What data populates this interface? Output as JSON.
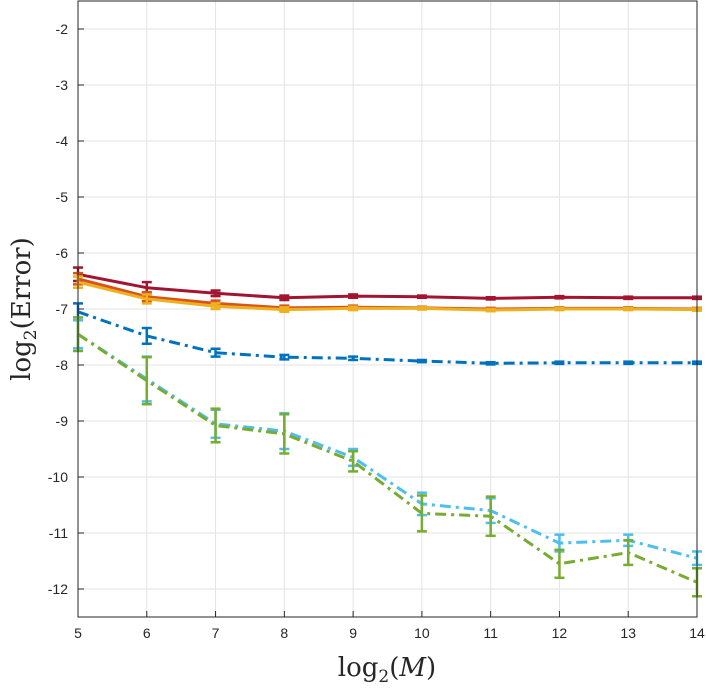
{
  "chart_data": {
    "type": "line",
    "title": "",
    "xlabel": "log2(M)",
    "ylabel": "log2(Error)",
    "xlim": [
      5,
      14
    ],
    "ylim": [
      -12.5,
      -1.5
    ],
    "xticks": [
      5,
      6,
      7,
      8,
      9,
      10,
      11,
      12,
      13,
      14
    ],
    "yticks": [
      -2,
      -3,
      -4,
      -5,
      -6,
      -7,
      -8,
      -9,
      -10,
      -11,
      -12
    ],
    "grid": true,
    "legend": "none",
    "x": [
      5,
      6,
      7,
      8,
      9,
      10,
      11,
      12,
      13,
      14
    ],
    "series": [
      {
        "name": "series-dark-red",
        "color": "#A2142F",
        "style": "solid",
        "values": [
          -6.38,
          -6.62,
          -6.72,
          -6.8,
          -6.77,
          -6.78,
          -6.81,
          -6.79,
          -6.8,
          -6.8
        ],
        "errors": [
          0.12,
          0.1,
          0.05,
          0.04,
          0.03,
          0.02,
          0.02,
          0.02,
          0.02,
          0.02
        ]
      },
      {
        "name": "series-orange",
        "color": "#D95319",
        "style": "solid",
        "values": [
          -6.46,
          -6.78,
          -6.9,
          -6.98,
          -6.97,
          -6.98,
          -7.0,
          -6.99,
          -6.99,
          -7.0
        ],
        "errors": [
          0.1,
          0.08,
          0.05,
          0.04,
          0.03,
          0.02,
          0.02,
          0.02,
          0.02,
          0.02
        ]
      },
      {
        "name": "series-yellow",
        "color": "#EDB120",
        "style": "solid",
        "values": [
          -6.52,
          -6.82,
          -6.95,
          -7.01,
          -6.99,
          -6.99,
          -7.02,
          -7.0,
          -7.0,
          -7.01
        ],
        "errors": [
          0.1,
          0.08,
          0.05,
          0.04,
          0.03,
          0.02,
          0.02,
          0.02,
          0.02,
          0.02
        ]
      },
      {
        "name": "series-blue",
        "color": "#0072BD",
        "style": "dashdot",
        "values": [
          -7.05,
          -7.48,
          -7.78,
          -7.86,
          -7.88,
          -7.93,
          -7.97,
          -7.96,
          -7.96,
          -7.96
        ],
        "errors": [
          0.15,
          0.14,
          0.07,
          0.04,
          0.03,
          0.02,
          0.02,
          0.02,
          0.02,
          0.02
        ]
      },
      {
        "name": "series-light-blue",
        "color": "#4DBEEE",
        "style": "dashdot",
        "values": [
          -7.45,
          -8.25,
          -9.05,
          -9.18,
          -9.65,
          -10.48,
          -10.6,
          -11.18,
          -11.13,
          -11.45
        ],
        "errors": [
          0.25,
          0.4,
          0.25,
          0.32,
          0.15,
          0.2,
          0.22,
          0.15,
          0.1,
          0.12
        ]
      },
      {
        "name": "series-green",
        "color": "#77AC30",
        "style": "dashdot",
        "values": [
          -7.45,
          -8.28,
          -9.08,
          -9.23,
          -9.72,
          -10.65,
          -10.7,
          -11.55,
          -11.35,
          -11.88
        ],
        "errors": [
          0.3,
          0.42,
          0.3,
          0.35,
          0.18,
          0.32,
          0.35,
          0.25,
          0.22,
          0.25
        ]
      }
    ]
  }
}
